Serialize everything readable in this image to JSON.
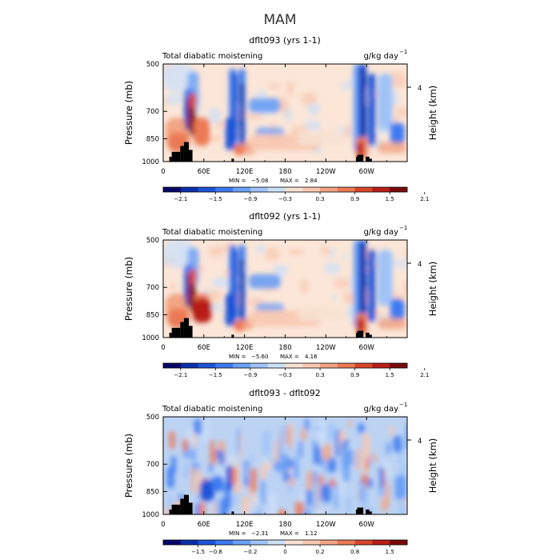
{
  "figure": {
    "title": "MAM"
  },
  "colorbar_colors": [
    "#06066b",
    "#0a2fa8",
    "#1d54d8",
    "#3d7af0",
    "#6aa0f6",
    "#9fc3f8",
    "#cde0f8",
    "#f7e2d2",
    "#f8c8b0",
    "#f3a482",
    "#ec7a55",
    "#d8472c",
    "#b81f17",
    "#7a0a0a"
  ],
  "chart_data": [
    {
      "type": "heatmap",
      "title": "dflt093 (yrs 1-1)",
      "left_label": "Total diabatic moistening",
      "units": "g/kg day",
      "units_exp": "−1",
      "ylabel": "Pressure (mb)",
      "right_label": "Height (km)",
      "right_ticks": [
        "4"
      ],
      "x_ticks": [
        "0",
        "60E",
        "120E",
        "180",
        "120W",
        "60W"
      ],
      "y_ticks": [
        "500",
        "700",
        "850",
        "1000"
      ],
      "ylim": [
        1000,
        500
      ],
      "stats": {
        "min_label": "MIN =",
        "min": "−5.08",
        "max_label": "MAX =",
        "max": "2.84"
      },
      "colorbar_labels": [
        "−2.1",
        "−1.5",
        "−0.9",
        "−0.3",
        "0.3",
        "0.9",
        "1.5",
        "2.1"
      ]
    },
    {
      "type": "heatmap",
      "title": "dflt092 (yrs 1-1)",
      "left_label": "Total diabatic moistening",
      "units": "g/kg day",
      "units_exp": "−1",
      "ylabel": "Pressure (mb)",
      "right_label": "Height (km)",
      "right_ticks": [
        "4"
      ],
      "x_ticks": [
        "0",
        "60E",
        "120E",
        "180",
        "120W",
        "60W"
      ],
      "y_ticks": [
        "500",
        "700",
        "850",
        "1000"
      ],
      "ylim": [
        1000,
        500
      ],
      "stats": {
        "min_label": "MIN =",
        "min": "−5.60",
        "max_label": "MAX =",
        "max": "4.16"
      },
      "colorbar_labels": [
        "−2.1",
        "−1.5",
        "−0.9",
        "−0.3",
        "0.3",
        "0.9",
        "1.5",
        "2.1"
      ]
    },
    {
      "type": "heatmap",
      "title": "dflt093 - dflt092",
      "left_label": "Total diabatic moistening",
      "units": "g/kg day",
      "units_exp": "−1",
      "ylabel": "Pressure (mb)",
      "right_label": "Height (km)",
      "right_ticks": [
        "4"
      ],
      "x_ticks": [
        "0",
        "60E",
        "120E",
        "180",
        "120W",
        "60W"
      ],
      "y_ticks": [
        "500",
        "700",
        "850",
        "1000"
      ],
      "ylim": [
        1000,
        500
      ],
      "stats": {
        "min_label": "MIN =",
        "min": "−2.31",
        "max_label": "MAX =",
        "max": "1.12"
      },
      "colorbar_labels": [
        "−1.5",
        "−0.8",
        "−0.2",
        "0",
        "0.2",
        "0.8",
        "1.5"
      ]
    }
  ]
}
